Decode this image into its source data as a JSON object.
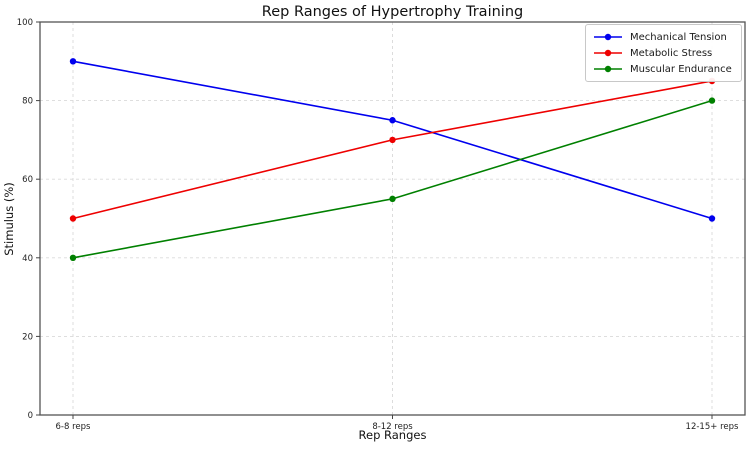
{
  "chart_data": {
    "type": "line",
    "title": "Rep Ranges of Hypertrophy Training",
    "xlabel": "Rep Ranges",
    "ylabel": "Stimulus (%)",
    "categories": [
      "6-8 reps",
      "8-12 reps",
      "12-15+ reps"
    ],
    "series": [
      {
        "name": "Mechanical Tension",
        "color": "#0000ee",
        "values": [
          90,
          75,
          50
        ]
      },
      {
        "name": "Metabolic Stress",
        "color": "#ee0000",
        "values": [
          50,
          70,
          85
        ]
      },
      {
        "name": "Muscular Endurance",
        "color": "#008000",
        "values": [
          40,
          55,
          80
        ]
      }
    ],
    "ylim": [
      0,
      100
    ],
    "yticks": [
      0,
      20,
      40,
      60,
      80,
      100
    ],
    "grid": true,
    "grid_style": "dashed",
    "legend_position": "upper right",
    "marker": "circle"
  }
}
